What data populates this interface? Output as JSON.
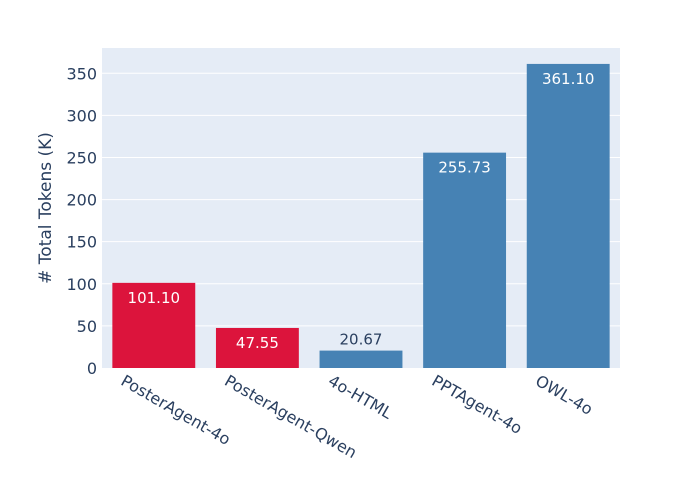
{
  "chart_data": {
    "type": "bar",
    "categories": [
      "PosterAgent-4o",
      "PosterAgent-Qwen",
      "4o-HTML",
      "PPTAgent-4o",
      "OWL-4o"
    ],
    "values": [
      101.1,
      47.55,
      20.67,
      255.73,
      361.1
    ],
    "value_labels": [
      "101.10",
      "47.55",
      "20.67",
      "255.73",
      "361.10"
    ],
    "bar_colors": [
      "#dc143c",
      "#dc143c",
      "#4682b4",
      "#4682b4",
      "#4682b4"
    ],
    "title": "",
    "xlabel": "",
    "ylabel": "# Total Tokens (K)",
    "ylim": [
      0,
      380
    ],
    "yticks": [
      0,
      50,
      100,
      150,
      200,
      250,
      300,
      350
    ],
    "grid": true,
    "legend": "none",
    "plot_background": "#e5ecf6",
    "text_color": "#2a3f5f"
  }
}
